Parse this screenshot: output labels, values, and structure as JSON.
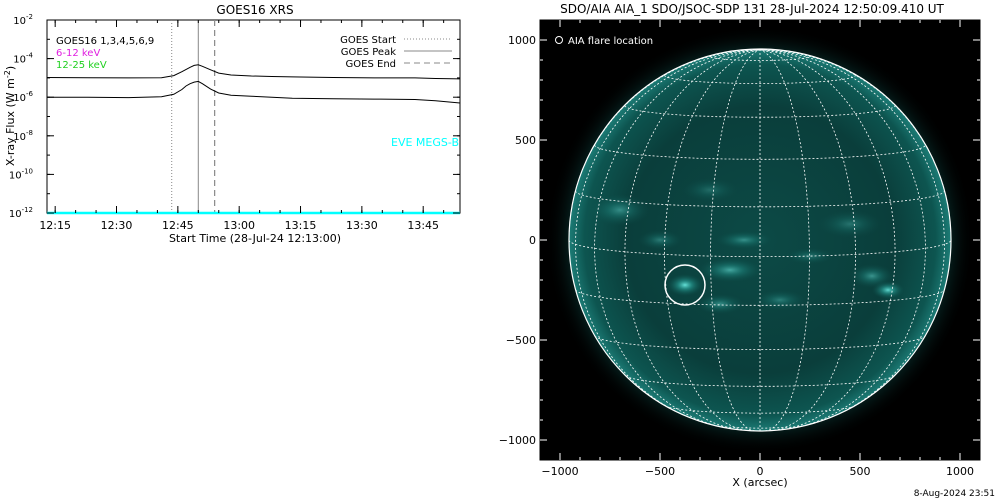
{
  "chart_data": [
    {
      "type": "line",
      "title": "GOES16 XRS",
      "xlabel": "Start Time (28-Jul-24 12:13:00)",
      "ylabel": "X-ray Flux (W m",
      "ylabel_sup": "-2",
      "ylabel_close": ")",
      "x_unit": "minutes since 12:13",
      "xlim": [
        0,
        101
      ],
      "ylim_exp": [
        -12,
        -2
      ],
      "y_log": true,
      "x_tick_labels": [
        {
          "t": 2,
          "label": "12:15"
        },
        {
          "t": 17,
          "label": "12:30"
        },
        {
          "t": 32,
          "label": "12:45"
        },
        {
          "t": 47,
          "label": "13:00"
        },
        {
          "t": 62,
          "label": "13:15"
        },
        {
          "t": 77,
          "label": "13:30"
        },
        {
          "t": 92,
          "label": "13:45"
        }
      ],
      "y_tick_exps": [
        -12,
        -10,
        -8,
        -6,
        -4,
        -2
      ],
      "legend_left": [
        {
          "label": "GOES16 1,3,4,5,6,9",
          "color": "#000000"
        },
        {
          "label": "6-12 keV",
          "color": "#e020e0"
        },
        {
          "label": "12-25 keV",
          "color": "#20d020"
        }
      ],
      "legend_right": [
        {
          "label": "GOES Start",
          "style": "dotted"
        },
        {
          "label": "GOES Peak",
          "style": "solid"
        },
        {
          "label": "GOES End",
          "style": "dashed"
        }
      ],
      "eve_label": "EVE MEGS-B",
      "event_lines": {
        "start": 30.5,
        "peak": 37,
        "end": 41
      },
      "series": [
        {
          "color": "#000000",
          "x": [
            0,
            10,
            20,
            28,
            31,
            33,
            35,
            36,
            37,
            38,
            40,
            42,
            45,
            50,
            55,
            60,
            70,
            80,
            90,
            95,
            101
          ],
          "log_y": [
            -4.98,
            -4.99,
            -5.0,
            -4.99,
            -4.88,
            -4.68,
            -4.45,
            -4.35,
            -4.32,
            -4.4,
            -4.58,
            -4.75,
            -4.85,
            -4.9,
            -4.93,
            -4.95,
            -4.98,
            -5.0,
            -5.0,
            -5.03,
            -5.05
          ]
        },
        {
          "color": "#000000",
          "x": [
            0,
            10,
            20,
            28,
            31,
            33,
            34,
            35,
            36,
            37,
            38,
            40,
            42,
            45,
            50,
            55,
            60,
            70,
            80,
            90,
            95,
            101
          ],
          "log_y": [
            -6.0,
            -6.0,
            -6.02,
            -5.98,
            -5.85,
            -5.6,
            -5.42,
            -5.3,
            -5.22,
            -5.18,
            -5.3,
            -5.58,
            -5.78,
            -5.9,
            -5.95,
            -6.0,
            -6.05,
            -6.08,
            -6.1,
            -6.12,
            -6.18,
            -6.3
          ]
        },
        {
          "color": "#00ffff",
          "x": [
            0,
            101
          ],
          "log_y": [
            -12.0,
            -12.0
          ]
        }
      ]
    },
    {
      "type": "image",
      "title": "SDO/AIA AIA_1 SDO/JSOC-SDP 131 28-Jul-2024 12:50:09.410 UT",
      "xlabel": "X (arcsec)",
      "xlim": [
        -1100,
        1100
      ],
      "ylim": [
        -1100,
        1100
      ],
      "x_ticks": [
        -1000,
        -500,
        0,
        500,
        1000
      ],
      "y_ticks": [
        -1000,
        -500,
        0,
        500,
        1000
      ],
      "x_tick_labels": [
        "−1000",
        "−500",
        "0",
        "500",
        "1000"
      ],
      "y_tick_labels": [
        "−1000",
        "−500",
        "0",
        "500",
        "1000"
      ],
      "solar_radius_arcsec": 955,
      "legend": "AIA flare location",
      "flare_location": [
        -375,
        -225
      ],
      "image_colors": {
        "background": "#000000",
        "disk": "#0a3a38",
        "bright": "#5fe6dd",
        "grid": "#ffffff"
      }
    }
  ],
  "footer": {
    "timestamp": "8-Aug-2024 23:51"
  }
}
